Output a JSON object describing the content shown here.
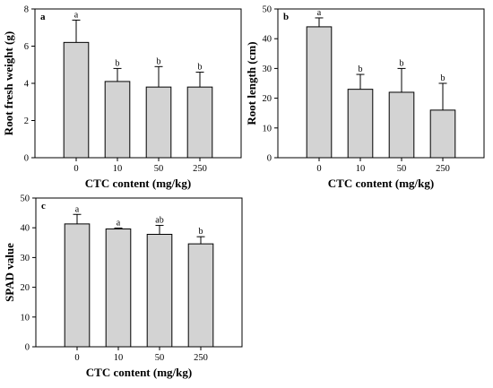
{
  "chart_data": [
    {
      "type": "bar",
      "panel": "a",
      "title": "",
      "xlabel": "CTC content (mg/kg)",
      "ylabel": "Root fresh weight (g)",
      "categories": [
        "0",
        "10",
        "50",
        "250"
      ],
      "values": [
        6.2,
        4.1,
        3.8,
        3.8
      ],
      "errors": [
        1.2,
        0.7,
        1.1,
        0.8
      ],
      "significance": [
        "a",
        "b",
        "b",
        "b"
      ],
      "ylim": [
        0,
        8
      ],
      "yticks": [
        0,
        2,
        4,
        6,
        8
      ],
      "bar_color": "#d3d3d3",
      "grid": false
    },
    {
      "type": "bar",
      "panel": "b",
      "title": "",
      "xlabel": "CTC content (mg/kg)",
      "ylabel": "Root length (cm)",
      "categories": [
        "0",
        "10",
        "50",
        "250"
      ],
      "values": [
        44,
        23,
        22,
        16
      ],
      "errors": [
        3,
        5,
        8,
        9
      ],
      "significance": [
        "a",
        "b",
        "b",
        "b"
      ],
      "ylim": [
        0,
        50
      ],
      "yticks": [
        0,
        10,
        20,
        30,
        40,
        50
      ],
      "bar_color": "#d3d3d3",
      "grid": false
    },
    {
      "type": "bar",
      "panel": "c",
      "title": "",
      "xlabel": "CTC content (mg/kg)",
      "ylabel": "SPAD value",
      "categories": [
        "0",
        "10",
        "50",
        "250"
      ],
      "values": [
        41.3,
        39.6,
        37.8,
        34.6
      ],
      "errors": [
        3.2,
        0.3,
        3.0,
        2.4
      ],
      "significance": [
        "a",
        "a",
        "ab",
        "b"
      ],
      "ylim": [
        0,
        50
      ],
      "yticks": [
        0,
        10,
        20,
        30,
        40,
        50
      ],
      "bar_color": "#d3d3d3",
      "grid": false
    }
  ]
}
